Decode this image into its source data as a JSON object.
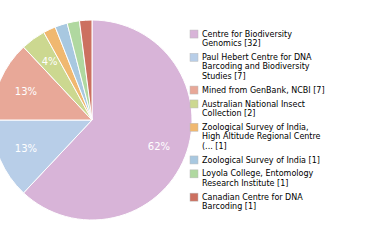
{
  "chart_data": {
    "type": "pie",
    "categories": [
      "Centre for Biodiversity\nGenomics [32]",
      "Paul Hebert Centre for DNA\nBarcoding and Biodiversity\nStudies [7]",
      "Mined from GenBank, NCBI [7]",
      "Australian National Insect\nCollection [2]",
      "Zoological Survey of India,\nHigh Altitude Regional Centre\n(... [1]",
      "Zoological Survey of India [1]",
      "Loyola College, Entomology\nResearch Institute [1]",
      "Canadian Centre for DNA\nBarcoding [1]"
    ],
    "values": [
      62,
      13,
      13,
      4,
      2,
      2,
      2,
      2
    ],
    "value_labels": [
      "62%",
      "13%",
      "13%",
      "4%",
      null,
      null,
      null,
      null
    ],
    "colors": [
      "#d8b4d8",
      "#b8cee8",
      "#e8a898",
      "#ccd890",
      "#f0b870",
      "#a8c8e0",
      "#b0d8a0",
      "#cc7060"
    ],
    "data_labels": true,
    "legend": "right"
  }
}
